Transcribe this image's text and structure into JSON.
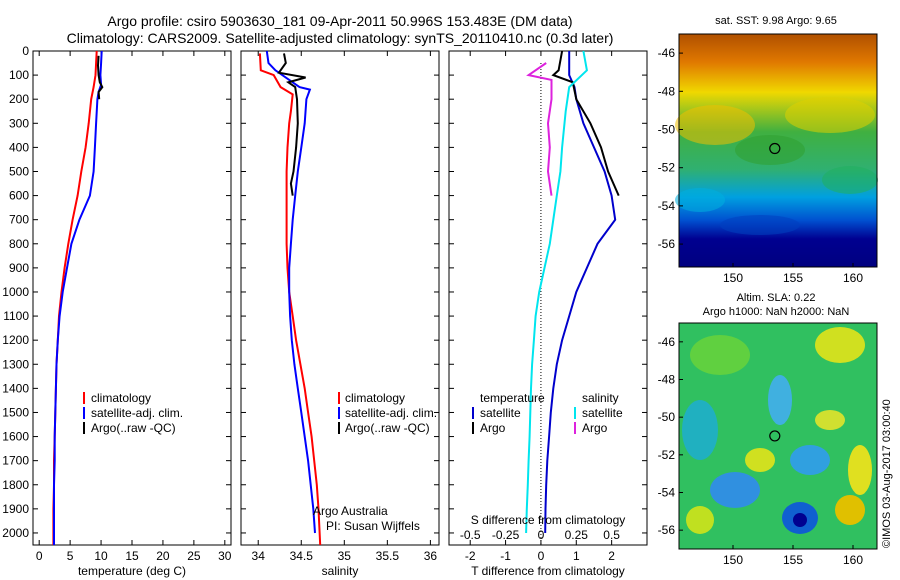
{
  "header": {
    "title_line1": "Argo profile: csiro 5903630_181 09-Apr-2011 50.996S 153.483E (DM data)",
    "title_line2": "Climatology: CARS2009. Satellite-adjusted climatology: synTS_20110410.nc (0.3d later)"
  },
  "colors": {
    "climatology": "#ff0000",
    "satellite": "#0000ff",
    "argo": "#000000",
    "sat_diff_temp": "#0000cc",
    "sat_diff_sal": "#00e5ee",
    "argo_diff_sal": "#dd22dd"
  },
  "chart_data": [
    {
      "id": "temperature",
      "type": "line",
      "xlabel": "temperature (deg C)",
      "ylabel": "",
      "xlim": [
        -1,
        31
      ],
      "ylim": [
        2050,
        0
      ],
      "xticks": [
        "0",
        "5",
        "10",
        "15",
        "20",
        "25",
        "30"
      ],
      "yticks": [
        "0",
        "100",
        "200",
        "300",
        "400",
        "500",
        "600",
        "700",
        "800",
        "900",
        "1000",
        "1100",
        "1200",
        "1300",
        "1400",
        "1500",
        "1600",
        "1700",
        "1800",
        "1900",
        "2000"
      ],
      "legend": [
        "climatology",
        "satellite-adj. clim.",
        "Argo(..raw -QC)"
      ],
      "series": [
        {
          "name": "climatology",
          "color_key": "climatology",
          "points": [
            [
              9.3,
              0
            ],
            [
              9.2,
              50
            ],
            [
              9.1,
              100
            ],
            [
              8.8,
              150
            ],
            [
              8.4,
              200
            ],
            [
              8.0,
              300
            ],
            [
              7.5,
              400
            ],
            [
              6.8,
              500
            ],
            [
              6.2,
              600
            ],
            [
              5.4,
              700
            ],
            [
              4.7,
              800
            ],
            [
              4.1,
              900
            ],
            [
              3.6,
              1000
            ],
            [
              3.2,
              1100
            ],
            [
              3.0,
              1200
            ],
            [
              2.8,
              1300
            ],
            [
              2.7,
              1400
            ],
            [
              2.6,
              1500
            ],
            [
              2.5,
              1600
            ],
            [
              2.4,
              1700
            ],
            [
              2.4,
              1800
            ],
            [
              2.3,
              1900
            ],
            [
              2.3,
              2050
            ]
          ]
        },
        {
          "name": "satellite-adj. clim.",
          "color_key": "satellite",
          "points": [
            [
              10.1,
              0
            ],
            [
              10.0,
              50
            ],
            [
              9.9,
              100
            ],
            [
              10.0,
              140
            ],
            [
              9.6,
              170
            ],
            [
              9.4,
              200
            ],
            [
              9.2,
              300
            ],
            [
              9.0,
              400
            ],
            [
              8.8,
              500
            ],
            [
              8.2,
              600
            ],
            [
              6.5,
              700
            ],
            [
              5.2,
              800
            ],
            [
              4.5,
              900
            ],
            [
              3.8,
              1000
            ],
            [
              3.3,
              1100
            ],
            [
              3.0,
              1200
            ],
            [
              2.8,
              1300
            ],
            [
              2.7,
              1400
            ],
            [
              2.6,
              1500
            ],
            [
              2.5,
              1600
            ],
            [
              2.5,
              1700
            ],
            [
              2.4,
              1800
            ],
            [
              2.4,
              1900
            ],
            [
              2.4,
              2050
            ]
          ]
        },
        {
          "name": "Argo(..raw -QC)",
          "color_key": "argo",
          "points": [
            [
              9.6,
              20
            ],
            [
              9.5,
              60
            ],
            [
              9.6,
              100
            ],
            [
              9.8,
              130
            ],
            [
              10.2,
              150
            ],
            [
              9.6,
              170
            ],
            [
              9.7,
              200
            ]
          ]
        }
      ]
    },
    {
      "id": "salinity",
      "type": "line",
      "xlabel": "salinity",
      "ylabel": "",
      "xlim": [
        33.8,
        36.1
      ],
      "ylim": [
        2050,
        0
      ],
      "xticks": [
        "34",
        "34.5",
        "35",
        "35.5",
        "36"
      ],
      "legend": [
        "climatology",
        "satellite-adj. clim.",
        "Argo(..raw -QC)"
      ],
      "annotation_lines": [
        "Argo Australia",
        "PI: Susan Wijffels"
      ],
      "series": [
        {
          "name": "climatology",
          "color_key": "climatology",
          "points": [
            [
              34.02,
              10
            ],
            [
              34.03,
              80
            ],
            [
              34.18,
              100
            ],
            [
              34.26,
              150
            ],
            [
              34.4,
              180
            ],
            [
              34.38,
              250
            ],
            [
              34.36,
              300
            ],
            [
              34.34,
              400
            ],
            [
              34.33,
              500
            ],
            [
              34.33,
              600
            ],
            [
              34.33,
              700
            ],
            [
              34.33,
              800
            ],
            [
              34.34,
              900
            ],
            [
              34.36,
              1000
            ],
            [
              34.4,
              1100
            ],
            [
              34.44,
              1200
            ],
            [
              34.49,
              1300
            ],
            [
              34.54,
              1400
            ],
            [
              34.58,
              1500
            ],
            [
              34.62,
              1600
            ],
            [
              34.65,
              1700
            ],
            [
              34.68,
              1800
            ],
            [
              34.7,
              1900
            ],
            [
              34.72,
              2050
            ]
          ]
        },
        {
          "name": "satellite-adj. clim.",
          "color_key": "satellite",
          "points": [
            [
              34.1,
              0
            ],
            [
              34.12,
              50
            ],
            [
              34.2,
              80
            ],
            [
              34.48,
              150
            ],
            [
              34.6,
              160
            ],
            [
              34.56,
              200
            ],
            [
              34.54,
              300
            ],
            [
              34.5,
              400
            ],
            [
              34.46,
              500
            ],
            [
              34.43,
              600
            ],
            [
              34.4,
              700
            ],
            [
              34.38,
              800
            ],
            [
              34.36,
              900
            ],
            [
              34.36,
              1000
            ],
            [
              34.37,
              1100
            ],
            [
              34.39,
              1200
            ],
            [
              34.42,
              1300
            ],
            [
              34.46,
              1400
            ],
            [
              34.5,
              1500
            ],
            [
              34.54,
              1600
            ],
            [
              34.58,
              1700
            ],
            [
              34.61,
              1800
            ],
            [
              34.64,
              1900
            ],
            [
              34.66,
              2000
            ]
          ]
        },
        {
          "name": "Argo(..raw -QC)",
          "color_key": "argo",
          "points": [
            [
              34.3,
              10
            ],
            [
              34.32,
              50
            ],
            [
              34.24,
              90
            ],
            [
              34.55,
              110
            ],
            [
              34.35,
              130
            ],
            [
              34.43,
              150
            ],
            [
              34.45,
              200
            ],
            [
              34.46,
              300
            ],
            [
              34.44,
              400
            ],
            [
              34.41,
              500
            ],
            [
              34.38,
              550
            ],
            [
              34.4,
              600
            ]
          ]
        }
      ]
    },
    {
      "id": "difference",
      "type": "line",
      "xlabel": "T difference from climatology",
      "xlabel_top": "S difference from climatology",
      "xlim": [
        -2.6,
        3.0
      ],
      "ylim": [
        2050,
        0
      ],
      "xticks": [
        "-2",
        "-1",
        "0",
        "1",
        "2"
      ],
      "xticks_s": [
        "-0.5",
        "-0.25",
        "0",
        "0.25",
        "0.5"
      ],
      "legend_temp_title": "temperature",
      "legend_sal_title": "salinity",
      "legend_items": [
        "satellite",
        "Argo"
      ],
      "series": [
        {
          "name": "temperature satellite",
          "color_key": "sat_diff_temp",
          "points": [
            [
              0.8,
              0
            ],
            [
              0.8,
              50
            ],
            [
              0.8,
              100
            ],
            [
              0.95,
              150
            ],
            [
              1.0,
              200
            ],
            [
              1.2,
              300
            ],
            [
              1.5,
              400
            ],
            [
              1.8,
              500
            ],
            [
              2.0,
              600
            ],
            [
              2.1,
              700
            ],
            [
              1.6,
              800
            ],
            [
              1.3,
              900
            ],
            [
              1.0,
              1000
            ],
            [
              0.8,
              1100
            ],
            [
              0.6,
              1200
            ],
            [
              0.45,
              1300
            ],
            [
              0.35,
              1400
            ],
            [
              0.28,
              1500
            ],
            [
              0.23,
              1600
            ],
            [
              0.18,
              1700
            ],
            [
              0.15,
              1800
            ],
            [
              0.13,
              1900
            ],
            [
              0.12,
              2000
            ]
          ]
        },
        {
          "name": "temperature Argo",
          "color_key": "argo",
          "points": [
            [
              0.6,
              0
            ],
            [
              0.5,
              80
            ],
            [
              0.35,
              100
            ],
            [
              0.9,
              130
            ],
            [
              1.0,
              200
            ],
            [
              1.4,
              300
            ],
            [
              1.7,
              400
            ],
            [
              1.9,
              500
            ],
            [
              2.2,
              600
            ]
          ]
        },
        {
          "name": "salinity satellite",
          "color_key": "sat_diff_sal",
          "points": [
            [
              1.2,
              0
            ],
            [
              1.3,
              80
            ],
            [
              0.8,
              150
            ],
            [
              0.7,
              250
            ],
            [
              0.6,
              400
            ],
            [
              0.55,
              500
            ],
            [
              0.45,
              600
            ],
            [
              0.35,
              700
            ],
            [
              0.25,
              800
            ],
            [
              0.1,
              900
            ],
            [
              -0.05,
              1000
            ],
            [
              -0.15,
              1100
            ],
            [
              -0.2,
              1200
            ],
            [
              -0.25,
              1300
            ],
            [
              -0.28,
              1400
            ],
            [
              -0.3,
              1500
            ],
            [
              -0.32,
              1600
            ],
            [
              -0.35,
              1700
            ],
            [
              -0.37,
              1800
            ],
            [
              -0.4,
              1900
            ],
            [
              -0.42,
              2000
            ]
          ]
        },
        {
          "name": "salinity Argo",
          "color_key": "argo_diff_sal",
          "points": [
            [
              0.15,
              50
            ],
            [
              -0.35,
              100
            ],
            [
              0.3,
              120
            ],
            [
              0.3,
              200
            ],
            [
              0.2,
              300
            ],
            [
              0.25,
              400
            ],
            [
              0.2,
              500
            ],
            [
              0.3,
              600
            ]
          ]
        }
      ]
    },
    {
      "id": "sst_map",
      "type": "heatmap",
      "title": "sat. SST: 9.98  Argo: 9.65",
      "xlim": [
        145.5,
        162
      ],
      "ylim": [
        -57.2,
        -45
      ],
      "xticks": [
        "150",
        "155",
        "160"
      ],
      "yticks": [
        "-46",
        "-48",
        "-50",
        "-52",
        "-54",
        "-56"
      ],
      "marker": {
        "lon": 153.483,
        "lat": -50.996
      }
    },
    {
      "id": "sla_map",
      "type": "heatmap",
      "title_line1": "Altim. SLA: 0.22",
      "title_line2": "Argo h1000: NaN h2000: NaN",
      "xlim": [
        145.5,
        162
      ],
      "ylim": [
        -57,
        -45
      ],
      "xticks": [
        "150",
        "155",
        "160"
      ],
      "yticks": [
        "-46",
        "-48",
        "-50",
        "-52",
        "-54",
        "-56"
      ],
      "marker": {
        "lon": 153.483,
        "lat": -50.996
      },
      "side_label": "©IMOS 03-Aug-2017 03:00:40"
    }
  ]
}
